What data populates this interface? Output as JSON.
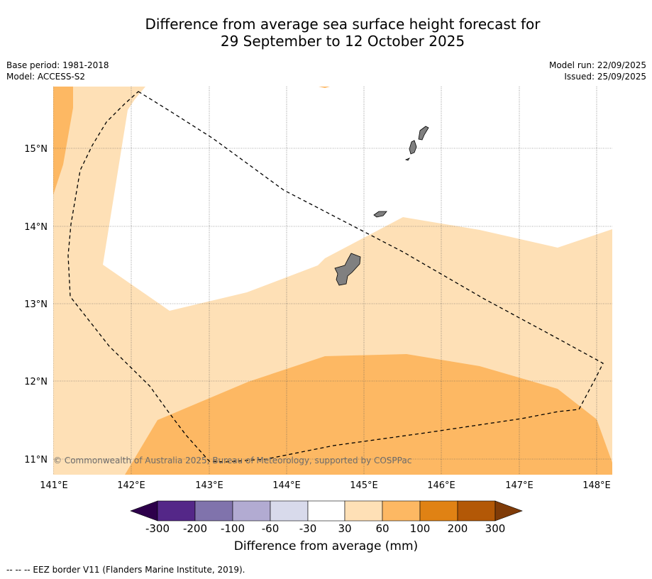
{
  "title_line1": "Difference from average sea surface height forecast for",
  "title_line2": "29 September to 12 October 2025",
  "meta": {
    "base_period": "Base period: 1981-2018",
    "model": "Model: ACCESS-S2",
    "model_run": "Model run: 22/09/2025",
    "issued": "Issued: 25/09/2025"
  },
  "map": {
    "lat_labels": [
      "15°N",
      "14°N",
      "13°N",
      "12°N",
      "11°N"
    ],
    "lon_labels": [
      "141°E",
      "142°E",
      "143°E",
      "144°E",
      "145°E",
      "146°E",
      "147°E",
      "148°E"
    ],
    "credit": "© Commonwealth of Australia 2025, Bureau of Meteorology, supported by COSPPac"
  },
  "colorbar": {
    "label": "Difference from average (mm)",
    "ticks": [
      "-300",
      "-200",
      "-100",
      "-60",
      "-30",
      "30",
      "60",
      "100",
      "200",
      "300"
    ],
    "colors": {
      "under": "#2d004b",
      "c1": "#542788",
      "c2": "#8073ac",
      "c3": "#b2abd2",
      "c4": "#d8daeb",
      "c5": "#ffffff",
      "c6": "#fee0b6",
      "c7": "#fdb863",
      "c8": "#e08214",
      "c9": "#b35806",
      "over": "#7f3b08"
    }
  },
  "footer": "--  --  -- EEZ border V11 (Flanders Marine Institute, 2019)."
}
